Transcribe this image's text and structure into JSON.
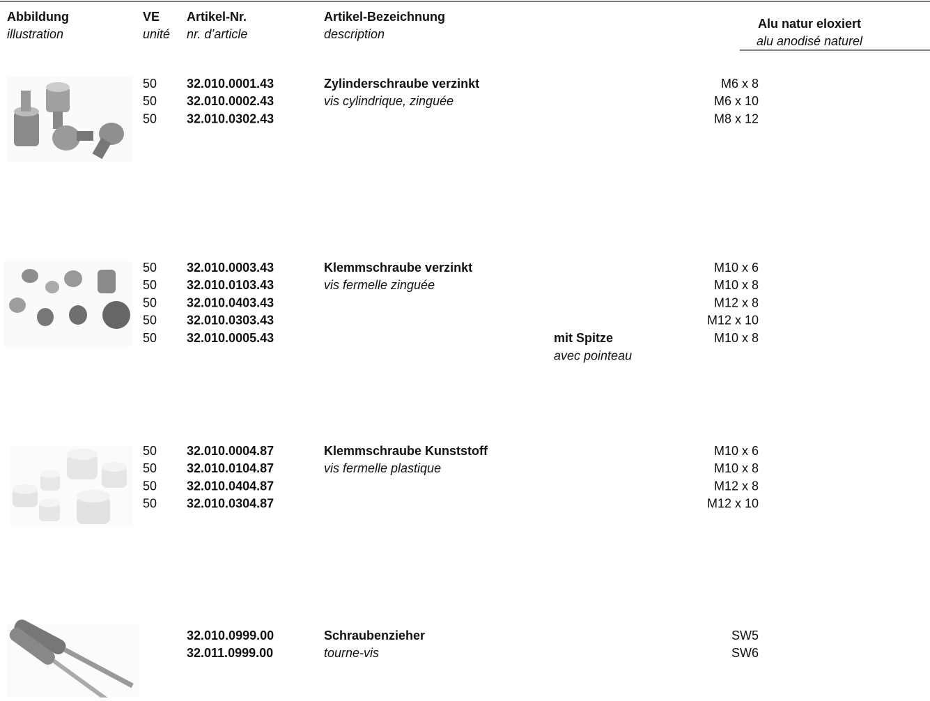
{
  "header": {
    "columns": [
      {
        "de": "Abbildung",
        "fr": "illustration"
      },
      {
        "de": "VE",
        "fr": "unité"
      },
      {
        "de": "Artikel-Nr.",
        "fr": "nr. d’article"
      },
      {
        "de": "Artikel-Bezeichnung",
        "fr": "description"
      },
      {
        "de": "Alu natur eloxiert",
        "fr": "alu anodisé naturel"
      }
    ]
  },
  "sections": [
    {
      "name_de": "Zylinderschraube verzinkt",
      "name_fr": "vis cylindrique, zinguée",
      "rows": [
        {
          "ve": 50,
          "article": "32.010.0001.43",
          "size": "M6 x 8"
        },
        {
          "ve": 50,
          "article": "32.010.0002.43",
          "size": "M6 x 10"
        },
        {
          "ve": 50,
          "article": "32.010.0302.43",
          "size": "M8 x 12"
        }
      ]
    },
    {
      "name_de": "Klemmschraube verzinkt",
      "name_fr": "vis fermelle zinguée",
      "rows": [
        {
          "ve": 50,
          "article": "32.010.0003.43",
          "size": "M10 x 6"
        },
        {
          "ve": 50,
          "article": "32.010.0103.43",
          "size": "M10 x 8"
        },
        {
          "ve": 50,
          "article": "32.010.0403.43",
          "size": "M12 x 8"
        },
        {
          "ve": 50,
          "article": "32.010.0303.43",
          "size": "M12 x 10"
        },
        {
          "ve": 50,
          "article": "32.010.0005.43",
          "size": "M10 x 8",
          "note_de": "mit Spitze",
          "note_fr": "avec pointeau"
        }
      ]
    },
    {
      "name_de": "Klemmschraube Kunststoff",
      "name_fr": "vis fermelle plastique",
      "rows": [
        {
          "ve": 50,
          "article": "32.010.0004.87",
          "size": "M10 x 6"
        },
        {
          "ve": 50,
          "article": "32.010.0104.87",
          "size": "M10 x 8"
        },
        {
          "ve": 50,
          "article": "32.010.0404.87",
          "size": "M12 x 8"
        },
        {
          "ve": 50,
          "article": "32.010.0304.87",
          "size": "M12 x 10"
        }
      ]
    },
    {
      "name_de": "Schraubenzieher",
      "name_fr": "tourne-vis",
      "rows": [
        {
          "article": "32.010.0999.00",
          "size": "SW5"
        },
        {
          "article": "32.011.0999.00",
          "size": "SW6"
        }
      ]
    }
  ]
}
